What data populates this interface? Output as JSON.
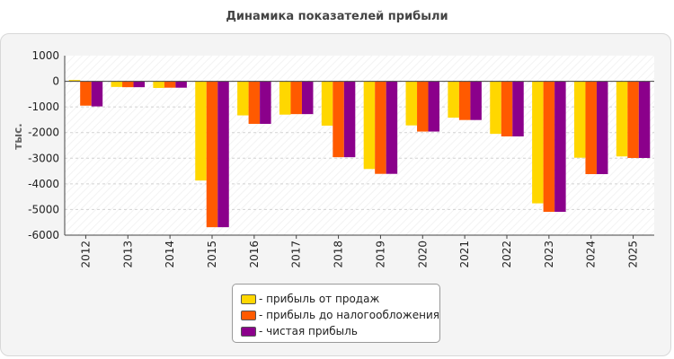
{
  "chart_data": {
    "type": "bar",
    "title": "Динамика показателей прибыли",
    "ylabel": "тыс.",
    "xlabel": "",
    "ylim": [
      -6000,
      1000
    ],
    "yticks": [
      1000,
      0,
      -1000,
      -2000,
      -3000,
      -4000,
      -5000,
      -6000
    ],
    "grid": true,
    "legend_position": "bottom-center",
    "categories": [
      "2012",
      "2013",
      "2014",
      "2015",
      "2016",
      "2017",
      "2018",
      "2019",
      "2020",
      "2021",
      "2022",
      "2023",
      "2024",
      "2025"
    ],
    "series": [
      {
        "name": "- прибыль от продаж",
        "color": "#ffd700",
        "values": [
          50,
          -220,
          -260,
          -3870,
          -1330,
          -1300,
          -1730,
          -3420,
          -1720,
          -1420,
          -2050,
          -4760,
          -2980,
          -2930
        ]
      },
      {
        "name": "- прибыль до налогообложения",
        "color": "#ff5a00",
        "values": [
          -950,
          -230,
          -250,
          -5690,
          -1660,
          -1280,
          -2960,
          -3610,
          -1960,
          -1510,
          -2150,
          -5090,
          -3620,
          -2990
        ]
      },
      {
        "name": "- чистая прибыль",
        "color": "#8b008b",
        "values": [
          -980,
          -230,
          -250,
          -5690,
          -1660,
          -1280,
          -2960,
          -3610,
          -1960,
          -1510,
          -2150,
          -5090,
          -3620,
          -2990
        ]
      }
    ]
  }
}
